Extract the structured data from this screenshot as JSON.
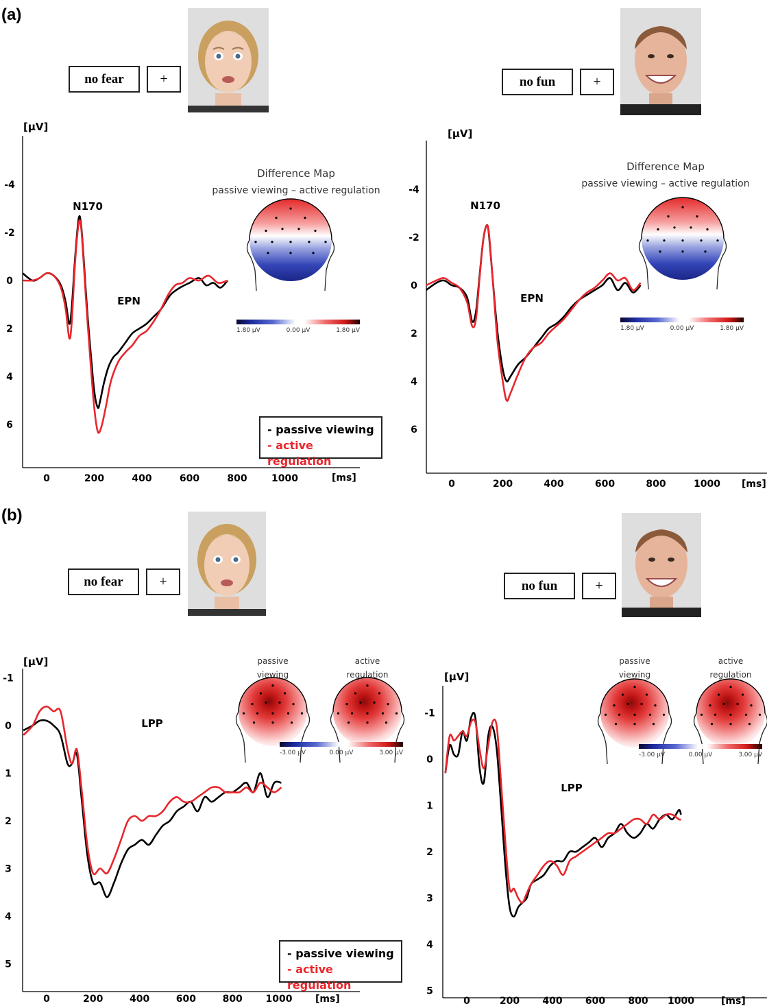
{
  "panels": {
    "a": "(a)",
    "b": "(b)"
  },
  "cues": {
    "fear": "no fear",
    "fun": "no fun",
    "cross": "+"
  },
  "legend": {
    "passive": "- passive viewing",
    "active": "- active regulation"
  },
  "chart_data": [
    {
      "type": "line",
      "panel": "(a)",
      "stimulus": "no fear",
      "xlabel": "[ms]",
      "ylabel": "[μV]",
      "xlim": [
        -100,
        800
      ],
      "ylim": [
        -5.8,
        8
      ],
      "x_ticks": [
        0,
        200,
        400,
        600,
        800,
        1000
      ],
      "y_ticks": [
        -4,
        -2,
        0,
        2,
        4,
        6
      ],
      "y_inverted": true,
      "annotations": [
        {
          "text": "N170",
          "x": 160,
          "y": -3.1
        },
        {
          "text": "EPN",
          "x": 340,
          "y": 0.9
        }
      ],
      "map_title": [
        "Difference Map",
        "passive viewing – active regulation"
      ],
      "colorbar": [
        "1.80 µV",
        "0.00 µV",
        "1.80 µV"
      ],
      "series": [
        {
          "name": "passive viewing",
          "color": "#000000",
          "x": [
            -100,
            -60,
            -30,
            0,
            30,
            60,
            80,
            95,
            105,
            120,
            135,
            145,
            155,
            170,
            185,
            200,
            215,
            225,
            240,
            260,
            280,
            300,
            330,
            360,
            390,
            420,
            450,
            480,
            520,
            560,
            600,
            640,
            670,
            700,
            730,
            760
          ],
          "y": [
            -0.3,
            0,
            -0.1,
            -0.3,
            -0.2,
            0.2,
            0.9,
            1.8,
            1.2,
            -1.0,
            -2.6,
            -2.3,
            -1.0,
            1.2,
            3.0,
            4.6,
            5.3,
            5.0,
            4.3,
            3.6,
            3.2,
            3.0,
            2.6,
            2.2,
            2.0,
            1.8,
            1.5,
            1.2,
            0.6,
            0.3,
            0.1,
            -0.1,
            0.2,
            0.1,
            0.3,
            0.0
          ]
        },
        {
          "name": "active regulation",
          "color": "#e8262c",
          "x": [
            -100,
            -60,
            -30,
            0,
            30,
            60,
            80,
            95,
            105,
            120,
            135,
            145,
            155,
            170,
            185,
            200,
            215,
            230,
            250,
            270,
            300,
            330,
            360,
            390,
            420,
            450,
            480,
            510,
            540,
            570,
            600,
            640,
            680,
            720,
            760
          ],
          "y": [
            0.0,
            0.0,
            -0.1,
            -0.3,
            -0.2,
            0.3,
            1.2,
            2.4,
            1.8,
            -0.8,
            -2.4,
            -2.2,
            -0.8,
            1.5,
            3.5,
            5.3,
            6.3,
            6.1,
            5.2,
            4.2,
            3.4,
            3.0,
            2.7,
            2.3,
            2.1,
            1.7,
            1.2,
            0.6,
            0.2,
            0.1,
            -0.1,
            0.0,
            -0.2,
            0.1,
            0.0
          ]
        }
      ]
    },
    {
      "type": "line",
      "panel": "(a)",
      "stimulus": "no fun",
      "xlabel": "[ms]",
      "ylabel": "[μV]",
      "xlim": [
        -100,
        1000
      ],
      "ylim": [
        -5.8,
        8
      ],
      "x_ticks": [
        0,
        200,
        400,
        600,
        800,
        1000
      ],
      "y_ticks": [
        -4,
        -2,
        0,
        2,
        4,
        6
      ],
      "y_inverted": true,
      "annotations": [
        {
          "text": "N170",
          "x": 160,
          "y": -3.1
        },
        {
          "text": "EPN",
          "x": 330,
          "y": 0.9
        }
      ],
      "map_title": [
        "Difference Map",
        "passive viewing – active regulation"
      ],
      "colorbar": [
        "1.80 µV",
        "0.00 µV",
        "1.80 µV"
      ],
      "series": [
        {
          "name": "passive viewing",
          "color": "#000000",
          "x": [
            -100,
            -60,
            -30,
            0,
            30,
            60,
            80,
            95,
            110,
            125,
            140,
            150,
            165,
            180,
            200,
            215,
            230,
            260,
            290,
            320,
            350,
            380,
            410,
            440,
            470,
            500,
            530,
            560,
            590,
            620,
            650,
            680,
            710,
            740
          ],
          "y": [
            0.2,
            -0.1,
            -0.2,
            0.0,
            0.1,
            0.5,
            1.5,
            1.1,
            -0.5,
            -2.0,
            -2.5,
            -1.6,
            0.3,
            2.0,
            3.5,
            4.0,
            3.8,
            3.3,
            3.0,
            2.6,
            2.2,
            1.8,
            1.6,
            1.3,
            0.9,
            0.6,
            0.4,
            0.2,
            0.0,
            -0.3,
            0.2,
            -0.1,
            0.3,
            0.0
          ]
        },
        {
          "name": "active regulation",
          "color": "#e8262c",
          "x": [
            -100,
            -60,
            -30,
            0,
            30,
            60,
            80,
            95,
            110,
            125,
            140,
            150,
            165,
            180,
            200,
            215,
            230,
            260,
            290,
            320,
            350,
            380,
            410,
            440,
            470,
            500,
            530,
            560,
            590,
            620,
            650,
            680,
            710,
            740
          ],
          "y": [
            0.0,
            -0.2,
            -0.3,
            -0.1,
            0.1,
            0.7,
            1.7,
            1.4,
            -0.4,
            -2.0,
            -2.5,
            -1.7,
            0.4,
            2.4,
            4.0,
            4.8,
            4.5,
            3.7,
            3.0,
            2.6,
            2.4,
            2.0,
            1.7,
            1.4,
            1.0,
            0.6,
            0.3,
            0.1,
            -0.2,
            -0.5,
            -0.2,
            -0.3,
            0.2,
            -0.1
          ]
        }
      ]
    },
    {
      "type": "line",
      "panel": "(b)",
      "stimulus": "no fear",
      "xlabel": "[ms]",
      "ylabel": "[μV]",
      "xlim": [
        -100,
        1150
      ],
      "ylim": [
        -2.5,
        5
      ],
      "x_ticks": [
        0,
        200,
        400,
        600,
        800,
        1000
      ],
      "y_ticks": [
        -1,
        0,
        1,
        2,
        3,
        4,
        5
      ],
      "y_inverted": true,
      "annotations": [
        {
          "text": "LPP",
          "x": 330,
          "y": 1.6
        }
      ],
      "map_labels": [
        "passive viewing",
        "active regulation"
      ],
      "colorbar": [
        "-3.00 µV",
        "0.00 µV",
        "3.00 µV"
      ],
      "series": [
        {
          "name": "passive viewing",
          "color": "#000000",
          "x": [
            -100,
            -60,
            -30,
            0,
            30,
            60,
            90,
            110,
            130,
            150,
            175,
            200,
            230,
            260,
            290,
            320,
            350,
            380,
            410,
            440,
            470,
            500,
            530,
            560,
            590,
            620,
            650,
            680,
            710,
            740,
            770,
            800,
            830,
            860,
            890,
            920,
            950,
            980,
            1010
          ],
          "y": [
            0.1,
            0.0,
            -0.1,
            -0.1,
            0.0,
            0.2,
            0.8,
            0.8,
            0.6,
            1.5,
            2.7,
            3.3,
            3.3,
            3.6,
            3.3,
            2.9,
            2.6,
            2.5,
            2.4,
            2.5,
            2.3,
            2.1,
            2.0,
            1.8,
            1.7,
            1.6,
            1.8,
            1.5,
            1.6,
            1.5,
            1.4,
            1.4,
            1.3,
            1.2,
            1.4,
            1.0,
            1.5,
            1.2,
            1.2
          ]
        },
        {
          "name": "active regulation",
          "color": "#e8262c",
          "x": [
            -100,
            -60,
            -30,
            0,
            30,
            60,
            90,
            110,
            130,
            150,
            175,
            200,
            230,
            260,
            290,
            320,
            350,
            380,
            410,
            440,
            470,
            500,
            530,
            560,
            590,
            620,
            650,
            680,
            710,
            740,
            770,
            800,
            830,
            860,
            890,
            920,
            950,
            980,
            1010
          ],
          "y": [
            0.2,
            0.0,
            -0.3,
            -0.4,
            -0.3,
            -0.3,
            0.5,
            0.8,
            0.5,
            1.3,
            2.5,
            3.1,
            3.0,
            3.1,
            2.8,
            2.4,
            2.0,
            1.9,
            2.0,
            1.9,
            1.9,
            1.8,
            1.6,
            1.5,
            1.6,
            1.6,
            1.5,
            1.4,
            1.3,
            1.3,
            1.4,
            1.4,
            1.4,
            1.3,
            1.4,
            1.2,
            1.3,
            1.4,
            1.3
          ]
        }
      ]
    },
    {
      "type": "line",
      "panel": "(b)",
      "stimulus": "no fun",
      "xlabel": "[ms]",
      "ylabel": "[μV]",
      "xlim": [
        -100,
        1150
      ],
      "ylim": [
        -2.3,
        5
      ],
      "x_ticks": [
        0,
        200,
        400,
        600,
        800,
        1000
      ],
      "y_ticks": [
        -1,
        0,
        1,
        2,
        3,
        4,
        5
      ],
      "y_inverted": true,
      "annotations": [
        {
          "text": "LPP",
          "x": 430,
          "y": 1.2
        }
      ],
      "map_labels": [
        "passive viewing",
        "active regulation"
      ],
      "colorbar": [
        "-3.00 µV",
        "0.00 µV",
        "3.00 µV"
      ],
      "series": [
        {
          "name": "passive viewing",
          "color": "#000000",
          "x": [
            -100,
            -80,
            -60,
            -40,
            -20,
            0,
            20,
            40,
            60,
            80,
            100,
            120,
            140,
            160,
            180,
            200,
            220,
            240,
            260,
            280,
            300,
            330,
            360,
            390,
            420,
            450,
            480,
            510,
            540,
            570,
            600,
            630,
            660,
            690,
            720,
            750,
            780,
            810,
            840,
            870,
            900,
            930,
            960,
            990,
            1000
          ],
          "y": [
            0.3,
            -0.3,
            -0.1,
            -0.1,
            -0.6,
            -0.4,
            -0.9,
            -0.9,
            0.2,
            0.5,
            -0.5,
            -0.7,
            -0.2,
            1.0,
            2.3,
            3.2,
            3.4,
            3.2,
            3.1,
            3.0,
            2.7,
            2.6,
            2.5,
            2.3,
            2.2,
            2.2,
            2.0,
            2.0,
            1.9,
            1.8,
            1.7,
            1.9,
            1.7,
            1.6,
            1.4,
            1.6,
            1.7,
            1.6,
            1.4,
            1.5,
            1.3,
            1.2,
            1.3,
            1.1,
            1.2
          ]
        },
        {
          "name": "active regulation",
          "color": "#e8262c",
          "x": [
            -100,
            -80,
            -60,
            -40,
            -20,
            0,
            20,
            40,
            60,
            80,
            100,
            120,
            140,
            160,
            180,
            200,
            220,
            240,
            260,
            280,
            300,
            330,
            360,
            390,
            420,
            450,
            480,
            510,
            540,
            570,
            600,
            630,
            660,
            690,
            720,
            750,
            780,
            810,
            840,
            870,
            900,
            930,
            960,
            990,
            1000
          ],
          "y": [
            0.3,
            -0.5,
            -0.4,
            -0.5,
            -0.6,
            -0.5,
            -0.8,
            -0.8,
            -0.2,
            0.2,
            -0.3,
            -0.8,
            -0.7,
            0.5,
            1.8,
            2.8,
            2.8,
            3.0,
            3.1,
            2.9,
            2.7,
            2.5,
            2.3,
            2.2,
            2.3,
            2.5,
            2.2,
            2.1,
            2.0,
            1.9,
            1.8,
            1.7,
            1.6,
            1.6,
            1.5,
            1.4,
            1.3,
            1.3,
            1.4,
            1.2,
            1.3,
            1.2,
            1.2,
            1.3,
            1.3
          ]
        }
      ]
    }
  ]
}
